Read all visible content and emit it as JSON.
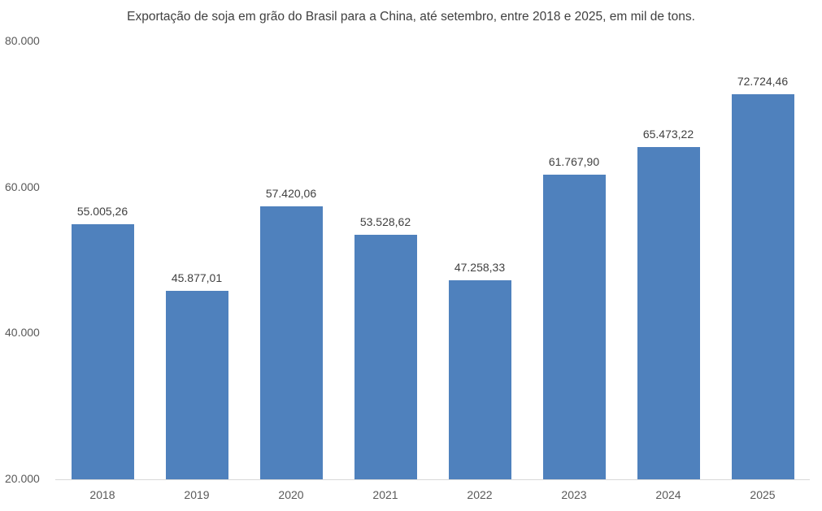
{
  "chart_data": {
    "type": "bar",
    "title": "Exportação de soja em grão do Brasil para a China, até setembro, entre 2018 e 2025, em mil de tons.",
    "xlabel": "",
    "ylabel": "",
    "categories": [
      "2018",
      "2019",
      "2020",
      "2021",
      "2022",
      "2023",
      "2024",
      "2025"
    ],
    "values": [
      55005.26,
      45877.01,
      57420.06,
      53528.62,
      47258.33,
      61767.9,
      65473.22,
      72724.46
    ],
    "value_labels": [
      "55.005,26",
      "45.877,01",
      "57.420,06",
      "53.528,62",
      "47.258,33",
      "61.767,90",
      "65.473,22",
      "72.724,46"
    ],
    "ylim": [
      20000,
      80000
    ],
    "yticks": [
      20000,
      40000,
      60000,
      80000
    ],
    "ytick_labels": [
      "20.000",
      "40.000",
      "60.000",
      "80.000"
    ],
    "grid": false,
    "legend": null,
    "bar_color": "#4f81bd"
  }
}
